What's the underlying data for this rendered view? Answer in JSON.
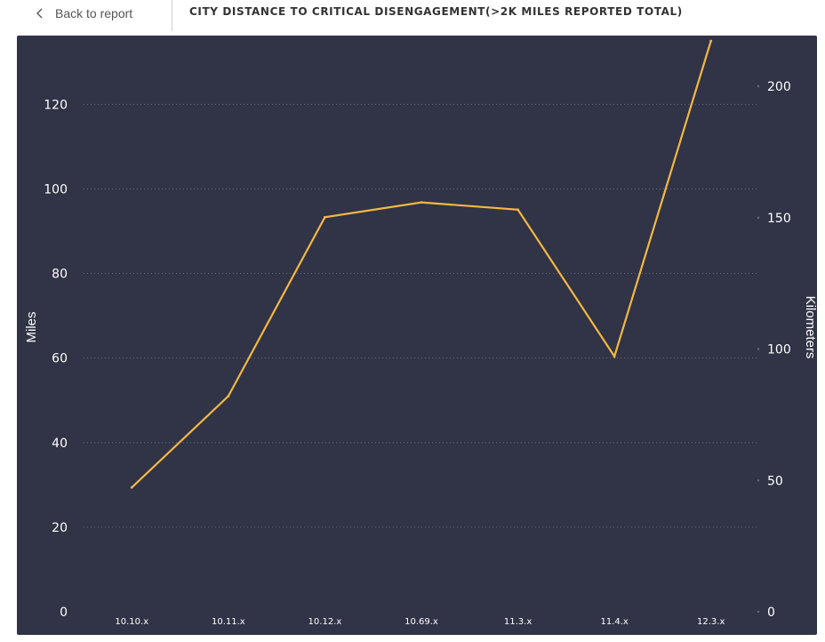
{
  "nav": {
    "back_label": "Back to report",
    "back_icon": "chevron-left-icon"
  },
  "page": {
    "title": "CITY DISTANCE TO CRITICAL DISENGAGEMENT(>2K MILES REPORTED TOTAL)"
  },
  "colors": {
    "panel_bg": "#313346",
    "line": "#f2b843",
    "text": "#ffffff",
    "grid": "#6a6c7e"
  },
  "chart_data": {
    "type": "line",
    "categories": [
      "10.10.x",
      "10.11.x",
      "10.12.x",
      "10.69.x",
      "11.3.x",
      "11.4.x",
      "12.3.x"
    ],
    "series": [
      {
        "values": [
          29.4,
          51,
          93.3,
          96.8,
          95.1,
          60.4,
          135
        ]
      }
    ],
    "ylabel": "Miles",
    "ylim": [
      0,
      135
    ],
    "yticks": [
      0,
      20,
      40,
      60,
      80,
      100,
      120
    ],
    "y2label": "Kilometers",
    "y2lim": [
      0,
      217.3
    ],
    "y2ticks": [
      0,
      50,
      100,
      150,
      200
    ],
    "grid": true
  }
}
